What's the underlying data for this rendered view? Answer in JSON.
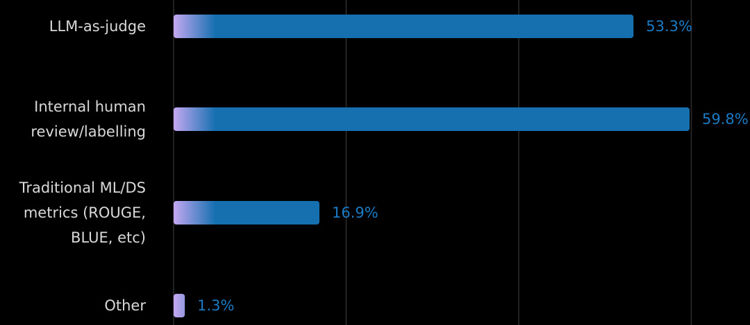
{
  "chart_data": {
    "type": "barh",
    "categories": [
      "LLM-as-judge",
      "Internal human review/labelling",
      "Traditional ML/DS metrics (ROUGE, BLUE, etc)",
      "Other"
    ],
    "values": [
      53.3,
      59.8,
      16.9,
      1.3
    ],
    "value_labels": [
      "53.3%",
      "59.8%",
      "16.9%",
      "1.3%"
    ],
    "color": "#1670b0",
    "gradient_start_color": "#c4a8f2",
    "label_color": "#1b7bc4",
    "xlim": [
      0,
      66.8
    ],
    "xticks": [
      0,
      20,
      40,
      60
    ],
    "grid": true
  }
}
